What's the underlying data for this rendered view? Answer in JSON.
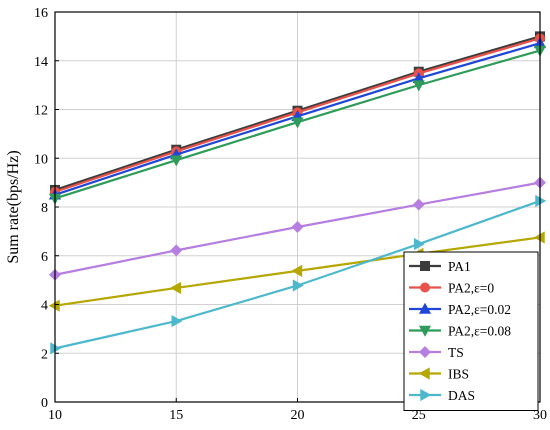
{
  "chart_data": {
    "type": "line",
    "title": "",
    "xlabel": "",
    "ylabel": "Sum rate(bps/Hz)",
    "xlim": [
      10,
      30
    ],
    "ylim": [
      0,
      16
    ],
    "x_ticks": [
      10,
      15,
      20,
      25,
      30
    ],
    "y_ticks": [
      0,
      2,
      4,
      6,
      8,
      10,
      12,
      14,
      16
    ],
    "grid": true,
    "legend_position": "bottom-right",
    "x": [
      10,
      15,
      20,
      25,
      30
    ],
    "series": [
      {
        "name": "PA1",
        "color": "#3c3c3c",
        "marker": "square",
        "values": [
          8.7,
          10.35,
          11.95,
          13.55,
          15.0
        ]
      },
      {
        "name": "PA2,ε=0",
        "color": "#e8524a",
        "marker": "circle",
        "values": [
          8.62,
          10.28,
          11.88,
          13.48,
          14.92
        ]
      },
      {
        "name": "PA2,ε=0.02",
        "color": "#2046d8",
        "marker": "triangle-up",
        "values": [
          8.5,
          10.15,
          11.72,
          13.28,
          14.72
        ]
      },
      {
        "name": "PA2,ε=0.08",
        "color": "#2f9b5a",
        "marker": "triangle-down",
        "values": [
          8.35,
          9.92,
          11.48,
          13.0,
          14.42
        ]
      },
      {
        "name": "TS",
        "color": "#b67ee0",
        "marker": "diamond",
        "values": [
          5.22,
          6.22,
          7.18,
          8.1,
          9.0
        ]
      },
      {
        "name": "IBS",
        "color": "#b5a600",
        "marker": "triangle-left",
        "values": [
          3.95,
          4.68,
          5.38,
          6.08,
          6.75
        ]
      },
      {
        "name": "DAS",
        "color": "#4db8cc",
        "marker": "triangle-right",
        "values": [
          2.2,
          3.32,
          4.78,
          6.48,
          8.25
        ]
      }
    ]
  }
}
